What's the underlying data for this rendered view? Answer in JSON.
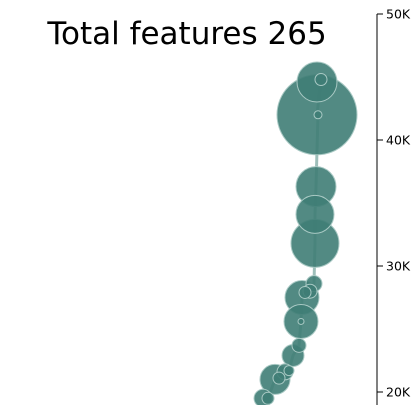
{
  "chart_data": {
    "type": "scatter",
    "title": "Total features 265",
    "xlabel": "",
    "ylabel": "",
    "y_axis_position": "right",
    "ylim": [
      19500,
      50000
    ],
    "y_ticks": [
      {
        "value": 20000,
        "label": "20K"
      },
      {
        "value": 30000,
        "label": "30K"
      },
      {
        "value": 40000,
        "label": "40K"
      },
      {
        "value": 50000,
        "label": "50K"
      }
    ],
    "grid": false,
    "legend": "none",
    "colors": {
      "bubble_fill": "#3f7d75",
      "bubble_stroke": "#a9c9c4",
      "path_line": "#4f8a82"
    },
    "points": [
      {
        "x": 317,
        "y": 44600,
        "size": 20
      },
      {
        "x": 321,
        "y": 44800,
        "size": 6
      },
      {
        "x": 317,
        "y": 42000,
        "size": 40
      },
      {
        "x": 318,
        "y": 42000,
        "size": 4
      },
      {
        "x": 316,
        "y": 36300,
        "size": 20
      },
      {
        "x": 315,
        "y": 34100,
        "size": 19
      },
      {
        "x": 315,
        "y": 31800,
        "size": 24
      },
      {
        "x": 314,
        "y": 28600,
        "size": 8
      },
      {
        "x": 310,
        "y": 28000,
        "size": 7
      },
      {
        "x": 305,
        "y": 27900,
        "size": 6
      },
      {
        "x": 302,
        "y": 27500,
        "size": 17
      },
      {
        "x": 301,
        "y": 25600,
        "size": 17
      },
      {
        "x": 301,
        "y": 25600,
        "size": 3
      },
      {
        "x": 299,
        "y": 23700,
        "size": 7
      },
      {
        "x": 293,
        "y": 22900,
        "size": 11
      },
      {
        "x": 289,
        "y": 21700,
        "size": 5
      },
      {
        "x": 285,
        "y": 21600,
        "size": 8
      },
      {
        "x": 279,
        "y": 21100,
        "size": 6
      },
      {
        "x": 275,
        "y": 21000,
        "size": 15
      },
      {
        "x": 268,
        "y": 19500,
        "size": 6
      },
      {
        "x": 263,
        "y": 19500,
        "size": 9
      }
    ]
  }
}
